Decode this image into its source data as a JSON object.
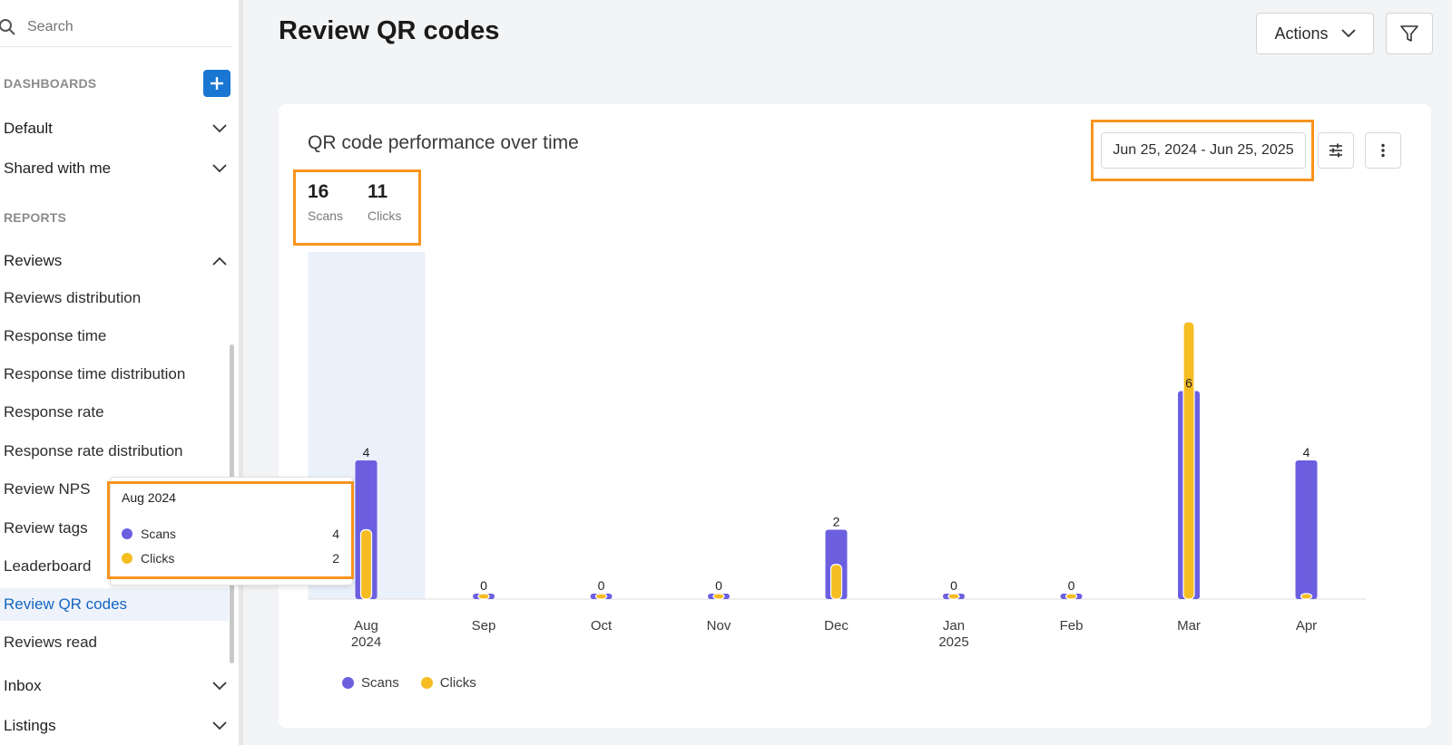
{
  "sidebar": {
    "search_placeholder": "Search",
    "dashboards_label": "DASHBOARDS",
    "groups_top": [
      {
        "label": "Default"
      },
      {
        "label": "Shared with me"
      }
    ],
    "reports_label": "REPORTS",
    "reviews_label": "Reviews",
    "items": [
      {
        "label": "Reviews distribution"
      },
      {
        "label": "Response time"
      },
      {
        "label": "Response time distribution"
      },
      {
        "label": "Response rate"
      },
      {
        "label": "Response rate distribution"
      },
      {
        "label": "Review NPS"
      },
      {
        "label": "Review tags"
      },
      {
        "label": "Leaderboard"
      },
      {
        "label": "Review QR codes"
      },
      {
        "label": "Reviews read"
      }
    ],
    "groups_bottom": [
      {
        "label": "Inbox"
      },
      {
        "label": "Listings"
      }
    ]
  },
  "header": {
    "title": "Review QR codes",
    "actions_label": "Actions"
  },
  "card": {
    "title": "QR code performance over time",
    "date_range": "Jun 25, 2024 - Jun 25, 2025",
    "stats": [
      {
        "value": "16",
        "label": "Scans"
      },
      {
        "value": "11",
        "label": "Clicks"
      }
    ]
  },
  "tooltip": {
    "title": "Aug 2024",
    "rows": [
      {
        "label": "Scans",
        "value": "4"
      },
      {
        "label": "Clicks",
        "value": "2"
      }
    ]
  },
  "colors": {
    "scans": "#6b5fe0",
    "clicks": "#f5bd22",
    "highlight": "#f7941d",
    "accent": "#1976d2"
  },
  "chart_data": {
    "type": "bar",
    "categories": [
      "Aug 2024",
      "Sep",
      "Oct",
      "Nov",
      "Dec",
      "Jan 2025",
      "Feb",
      "Mar",
      "Apr"
    ],
    "series": [
      {
        "name": "Scans",
        "values": [
          4,
          0,
          0,
          0,
          2,
          0,
          0,
          6,
          4
        ]
      },
      {
        "name": "Clicks",
        "values": [
          2,
          0,
          0,
          0,
          1,
          0,
          0,
          8,
          0
        ]
      }
    ],
    "data_labels": [
      "4",
      "0",
      "0",
      "0",
      "2",
      "0",
      "0",
      "6",
      "4"
    ],
    "ylim": [
      0,
      8
    ],
    "legend_position": "bottom-left",
    "grid": false,
    "highlighted_category": "Aug 2024"
  }
}
